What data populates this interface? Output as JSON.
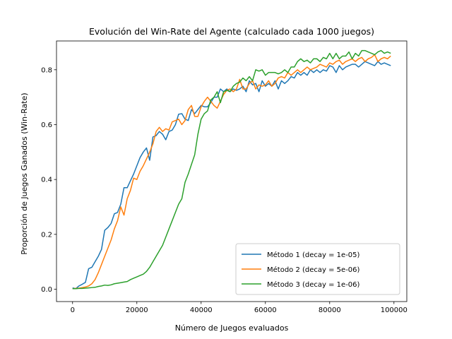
{
  "chart_data": {
    "type": "line",
    "title": "Evolución del Win-Rate del Agente (calculado cada 1000 juegos)",
    "xlabel": "Número de Juegos evaluados",
    "ylabel": "Proporción de Juegos Ganados (Win-Rate)",
    "xlim": [
      -5000,
      104000
    ],
    "ylim": [
      -0.045,
      0.905
    ],
    "xticks": [
      0,
      20000,
      40000,
      60000,
      80000,
      100000
    ],
    "yticks": [
      0.0,
      0.2,
      0.4,
      0.6,
      0.8
    ],
    "xtick_labels": [
      "0",
      "20000",
      "40000",
      "60000",
      "80000",
      "100000"
    ],
    "ytick_labels": [
      "0.0",
      "0.2",
      "0.4",
      "0.6",
      "0.8"
    ],
    "grid": false,
    "legend_position": "lower-right",
    "series": [
      {
        "name": "Método 1 (decay = 1e-05)",
        "color": "#1f77b4",
        "x": [
          0,
          1000,
          2000,
          3000,
          4000,
          5000,
          6000,
          7000,
          8000,
          9000,
          10000,
          11000,
          12000,
          13000,
          14000,
          15000,
          16000,
          17000,
          18000,
          19000,
          20000,
          21000,
          22000,
          23000,
          24000,
          25000,
          26000,
          27000,
          28000,
          29000,
          30000,
          31000,
          32000,
          33000,
          34000,
          35000,
          36000,
          37000,
          38000,
          39000,
          40000,
          41000,
          42000,
          43000,
          44000,
          45000,
          46000,
          47000,
          48000,
          49000,
          50000,
          51000,
          52000,
          53000,
          54000,
          55000,
          56000,
          57000,
          58000,
          59000,
          60000,
          61000,
          62000,
          63000,
          64000,
          65000,
          66000,
          67000,
          68000,
          69000,
          70000,
          71000,
          72000,
          73000,
          74000,
          75000,
          76000,
          77000,
          78000,
          79000,
          80000,
          81000,
          82000,
          83000,
          84000,
          85000,
          86000,
          87000,
          88000,
          89000,
          90000,
          91000,
          92000,
          93000,
          94000,
          95000,
          96000,
          97000,
          98000,
          99000
        ],
        "y": [
          0.005,
          0.002,
          0.012,
          0.018,
          0.025,
          0.075,
          0.08,
          0.1,
          0.12,
          0.145,
          0.215,
          0.225,
          0.24,
          0.275,
          0.28,
          0.31,
          0.37,
          0.37,
          0.395,
          0.42,
          0.45,
          0.48,
          0.5,
          0.515,
          0.47,
          0.555,
          0.56,
          0.575,
          0.565,
          0.545,
          0.575,
          0.58,
          0.6,
          0.638,
          0.64,
          0.62,
          0.615,
          0.655,
          0.64,
          0.655,
          0.67,
          0.665,
          0.665,
          0.68,
          0.7,
          0.7,
          0.73,
          0.72,
          0.73,
          0.72,
          0.73,
          0.725,
          0.73,
          0.74,
          0.72,
          0.76,
          0.745,
          0.75,
          0.72,
          0.76,
          0.74,
          0.75,
          0.74,
          0.76,
          0.73,
          0.76,
          0.75,
          0.76,
          0.775,
          0.77,
          0.79,
          0.78,
          0.79,
          0.78,
          0.8,
          0.79,
          0.8,
          0.79,
          0.8,
          0.795,
          0.815,
          0.81,
          0.79,
          0.815,
          0.8,
          0.81,
          0.815,
          0.82,
          0.82,
          0.81,
          0.82,
          0.83,
          0.825,
          0.82,
          0.815,
          0.83,
          0.82,
          0.825,
          0.82,
          0.815
        ]
      },
      {
        "name": "Método 2 (decay = 5e-06)",
        "color": "#ff7f0e",
        "x": [
          0,
          1000,
          2000,
          3000,
          4000,
          5000,
          6000,
          7000,
          8000,
          9000,
          10000,
          11000,
          12000,
          13000,
          14000,
          15000,
          16000,
          17000,
          18000,
          19000,
          20000,
          21000,
          22000,
          23000,
          24000,
          25000,
          26000,
          27000,
          28000,
          29000,
          30000,
          31000,
          32000,
          33000,
          34000,
          35000,
          36000,
          37000,
          38000,
          39000,
          40000,
          41000,
          42000,
          43000,
          44000,
          45000,
          46000,
          47000,
          48000,
          49000,
          50000,
          51000,
          52000,
          53000,
          54000,
          55000,
          56000,
          57000,
          58000,
          59000,
          60000,
          61000,
          62000,
          63000,
          64000,
          65000,
          66000,
          67000,
          68000,
          69000,
          70000,
          71000,
          72000,
          73000,
          74000,
          75000,
          76000,
          77000,
          78000,
          79000,
          80000,
          81000,
          82000,
          83000,
          84000,
          85000,
          86000,
          87000,
          88000,
          89000,
          90000,
          91000,
          92000,
          93000,
          94000,
          95000,
          96000,
          97000,
          98000,
          99000
        ],
        "y": [
          0.002,
          0.003,
          0.004,
          0.006,
          0.008,
          0.012,
          0.02,
          0.035,
          0.06,
          0.09,
          0.12,
          0.15,
          0.18,
          0.22,
          0.25,
          0.3,
          0.27,
          0.33,
          0.36,
          0.405,
          0.4,
          0.43,
          0.45,
          0.475,
          0.5,
          0.53,
          0.575,
          0.59,
          0.575,
          0.585,
          0.58,
          0.61,
          0.615,
          0.62,
          0.6,
          0.615,
          0.655,
          0.67,
          0.63,
          0.63,
          0.665,
          0.685,
          0.7,
          0.685,
          0.67,
          0.66,
          0.685,
          0.71,
          0.725,
          0.73,
          0.72,
          0.73,
          0.765,
          0.73,
          0.73,
          0.75,
          0.76,
          0.73,
          0.745,
          0.74,
          0.745,
          0.76,
          0.74,
          0.75,
          0.77,
          0.775,
          0.77,
          0.79,
          0.78,
          0.79,
          0.8,
          0.79,
          0.8,
          0.81,
          0.8,
          0.805,
          0.81,
          0.82,
          0.815,
          0.81,
          0.825,
          0.82,
          0.83,
          0.835,
          0.82,
          0.83,
          0.835,
          0.84,
          0.83,
          0.84,
          0.845,
          0.83,
          0.84,
          0.845,
          0.855,
          0.83,
          0.84,
          0.845,
          0.84,
          0.85
        ]
      },
      {
        "name": "Método 3 (decay = 1e-06)",
        "color": "#2ca02c",
        "x": [
          0,
          1000,
          2000,
          3000,
          4000,
          5000,
          6000,
          7000,
          8000,
          9000,
          10000,
          11000,
          12000,
          13000,
          14000,
          15000,
          16000,
          17000,
          18000,
          19000,
          20000,
          21000,
          22000,
          23000,
          24000,
          25000,
          26000,
          27000,
          28000,
          29000,
          30000,
          31000,
          32000,
          33000,
          34000,
          35000,
          36000,
          37000,
          38000,
          39000,
          40000,
          41000,
          42000,
          43000,
          44000,
          45000,
          46000,
          47000,
          48000,
          49000,
          50000,
          51000,
          52000,
          53000,
          54000,
          55000,
          56000,
          57000,
          58000,
          59000,
          60000,
          61000,
          62000,
          63000,
          64000,
          65000,
          66000,
          67000,
          68000,
          69000,
          70000,
          71000,
          72000,
          73000,
          74000,
          75000,
          76000,
          77000,
          78000,
          79000,
          80000,
          81000,
          82000,
          83000,
          84000,
          85000,
          86000,
          87000,
          88000,
          89000,
          90000,
          91000,
          92000,
          93000,
          94000,
          95000,
          96000,
          97000,
          98000,
          99000
        ],
        "y": [
          0.002,
          0.002,
          0.003,
          0.003,
          0.004,
          0.005,
          0.006,
          0.007,
          0.01,
          0.012,
          0.015,
          0.014,
          0.016,
          0.02,
          0.022,
          0.024,
          0.026,
          0.028,
          0.035,
          0.04,
          0.045,
          0.05,
          0.055,
          0.065,
          0.08,
          0.1,
          0.12,
          0.14,
          0.16,
          0.19,
          0.22,
          0.25,
          0.28,
          0.31,
          0.33,
          0.39,
          0.42,
          0.455,
          0.49,
          0.565,
          0.62,
          0.64,
          0.65,
          0.69,
          0.7,
          0.72,
          0.68,
          0.72,
          0.725,
          0.72,
          0.74,
          0.75,
          0.755,
          0.77,
          0.76,
          0.775,
          0.76,
          0.8,
          0.795,
          0.8,
          0.78,
          0.79,
          0.79,
          0.79,
          0.785,
          0.79,
          0.8,
          0.79,
          0.81,
          0.81,
          0.83,
          0.84,
          0.83,
          0.835,
          0.825,
          0.84,
          0.84,
          0.83,
          0.845,
          0.84,
          0.86,
          0.84,
          0.86,
          0.84,
          0.85,
          0.85,
          0.865,
          0.84,
          0.86,
          0.85,
          0.87,
          0.87,
          0.865,
          0.86,
          0.855,
          0.865,
          0.87,
          0.86,
          0.865,
          0.86
        ]
      }
    ]
  }
}
